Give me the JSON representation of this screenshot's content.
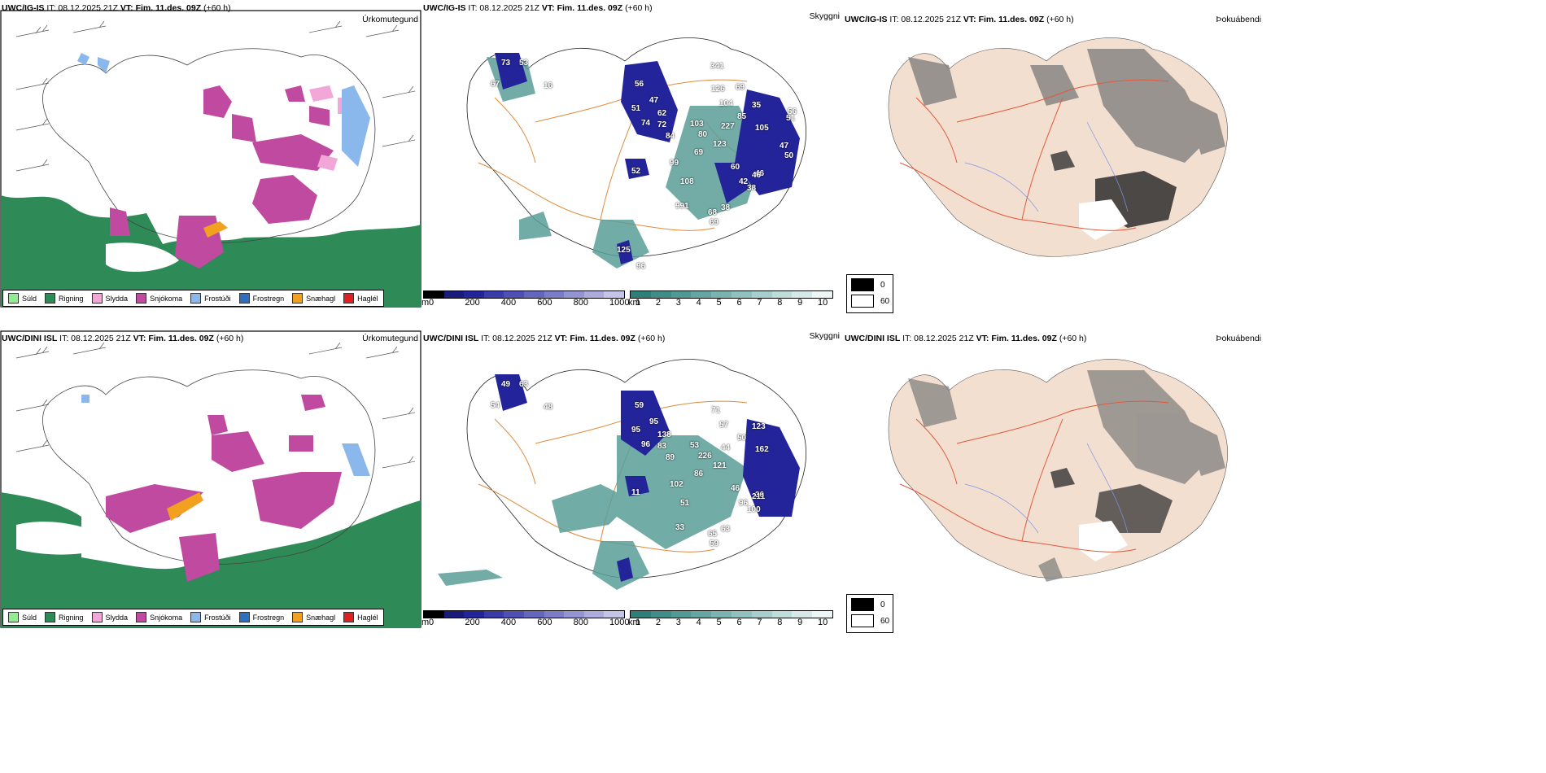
{
  "rows": [
    {
      "model": "UWC/IG-IS",
      "run": "IT: 08.12.2025 21Z",
      "vt_label": "VT:",
      "valid": "Fim. 11.des. 09Z",
      "lead": "(+60 h)",
      "precip_title": "Úrkomutegund",
      "vis_title": "Skyggni",
      "fog_title": "Þokuábendi",
      "snow_labels": [
        "73",
        "53",
        "67",
        "16",
        "56",
        "47",
        "51",
        "62",
        "74",
        "72",
        "84",
        "103",
        "80",
        "69",
        "99",
        "52",
        "108",
        "60",
        "46",
        "42",
        "38",
        "46",
        "68",
        "69",
        "38",
        "991",
        "35",
        "105",
        "85",
        "227",
        "123",
        "104",
        "126",
        "69",
        "341",
        "56",
        "51",
        "50",
        "47",
        "125",
        "96"
      ]
    },
    {
      "model": "UWC/DINI ISL",
      "run": "IT: 08.12.2025 21Z",
      "vt_label": "VT:",
      "valid": "Fim. 11.des. 09Z",
      "lead": "(+60 h)",
      "precip_title": "Úrkomutegund",
      "vis_title": "Skyggni",
      "fog_title": "Þokuábendi",
      "snow_labels": [
        "49",
        "63",
        "54",
        "48",
        "59",
        "95",
        "95",
        "138",
        "96",
        "83",
        "89",
        "53",
        "226",
        "86",
        "102",
        "11",
        "51",
        "46",
        "36",
        "96",
        "100",
        "211",
        "65",
        "59",
        "63",
        "33",
        "123",
        "162",
        "50",
        "44",
        "121",
        "57",
        "71"
      ]
    }
  ],
  "precip_legend": [
    {
      "label": "Súld",
      "color": "#90ee90"
    },
    {
      "label": "Rigning",
      "color": "#2e8b57"
    },
    {
      "label": "Slydda",
      "color": "#f2a7d8"
    },
    {
      "label": "Snjókoma",
      "color": "#c04aa0"
    },
    {
      "label": "Frostúði",
      "color": "#8ab8ec"
    },
    {
      "label": "Frostregn",
      "color": "#2f6fc0"
    },
    {
      "label": "Snæhagl",
      "color": "#f2a020"
    },
    {
      "label": "Haglél",
      "color": "#e02020"
    }
  ],
  "snow_cbar": {
    "unit": "m",
    "ticks": [
      "0",
      "200",
      "400",
      "600",
      "800",
      "1000"
    ],
    "colors": [
      "#000000",
      "#1a1a7a",
      "#24249a",
      "#3a3aa8",
      "#4f4fb4",
      "#6565be",
      "#7c7cc8",
      "#9494d2",
      "#acacdc",
      "#c4c4e6"
    ]
  },
  "vis_cbar": {
    "unit": "km",
    "ticks": [
      "1",
      "2",
      "3",
      "4",
      "5",
      "6",
      "7",
      "8",
      "9",
      "10"
    ],
    "colors": [
      "#2e7f7a",
      "#3f8c88",
      "#519995",
      "#65a6a3",
      "#7ab3b0",
      "#90c1be",
      "#a7cecc",
      "#bedcda",
      "#d6e9e8",
      "#eef6f5"
    ]
  },
  "fog_legend": [
    {
      "label": "0",
      "color": "#000000"
    },
    {
      "label": "60",
      "color": "#ffffff"
    }
  ],
  "colors": {
    "rain": "#2e8b57",
    "snow": "#c04aa0",
    "sleet": "#f2a7d8",
    "freezing_drizzle": "#8ab8ec",
    "snow_pellets": "#f2a020",
    "snowdepth": "#24249a",
    "visibility": "#5a9e98",
    "land_fog": "#f3dfd0",
    "roads": "#e2583a",
    "roads_vis": "#e08a3a"
  }
}
